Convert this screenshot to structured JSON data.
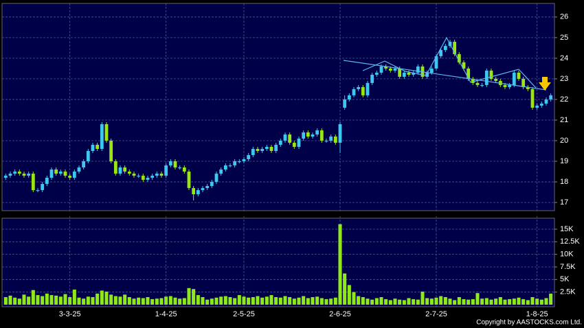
{
  "chart_data": [
    {
      "type": "candlestick",
      "open": [
        18.2,
        18.3,
        18.4,
        18.5,
        18.4,
        18.3,
        18.4,
        17.6,
        17.6,
        17.9,
        18.2,
        18.6,
        18.4,
        18.5,
        18.3,
        18.2,
        18.5,
        18.7,
        19.0,
        19.5,
        19.8,
        19.6,
        20.8,
        20.0,
        19.0,
        18.4,
        18.7,
        18.5,
        18.4,
        18.3,
        18.3,
        18.1,
        18.2,
        18.3,
        18.4,
        18.3,
        18.8,
        19.0,
        18.7,
        18.7,
        18.5,
        17.7,
        17.4,
        17.6,
        17.7,
        17.8,
        18.0,
        18.4,
        18.6,
        18.8,
        18.8,
        19.0,
        19.0,
        19.1,
        19.3,
        19.6,
        19.5,
        19.6,
        19.7,
        19.5,
        19.8,
        20.0,
        20.3,
        19.9,
        19.7,
        20.1,
        20.4,
        20.2,
        20.3,
        20.5,
        20.0,
        20.0,
        20.2,
        19.9,
        21.6,
        22.0,
        22.2,
        22.5,
        22.6,
        22.2,
        22.8,
        23.2,
        23.3,
        23.6,
        23.5,
        23.4,
        23.5,
        23.1,
        23.3,
        23.2,
        23.3,
        23.6,
        23.1,
        23.3,
        23.5,
        24.1,
        24.4,
        24.6,
        24.8,
        24.2,
        23.8,
        23.5,
        23.0,
        22.8,
        22.7,
        22.7,
        23.4,
        23.0,
        22.9,
        22.7,
        22.6,
        22.7,
        23.3,
        23.0,
        22.6,
        22.5,
        21.6,
        21.7,
        21.8,
        22.0
      ],
      "high": [
        18.4,
        18.5,
        18.6,
        18.6,
        18.5,
        18.5,
        18.5,
        17.7,
        18.0,
        18.3,
        18.7,
        18.7,
        18.6,
        18.6,
        18.4,
        18.6,
        18.8,
        19.1,
        19.6,
        19.9,
        19.9,
        20.9,
        20.9,
        20.1,
        19.1,
        18.8,
        18.8,
        18.6,
        18.5,
        18.4,
        18.4,
        18.3,
        18.4,
        18.5,
        18.5,
        18.9,
        19.1,
        19.1,
        18.8,
        18.8,
        18.6,
        17.8,
        17.7,
        17.8,
        17.9,
        18.1,
        18.5,
        18.7,
        18.9,
        18.9,
        19.1,
        19.1,
        19.2,
        19.4,
        19.7,
        19.7,
        19.7,
        19.8,
        19.8,
        19.9,
        20.1,
        20.4,
        20.4,
        20.0,
        20.2,
        20.5,
        20.5,
        20.4,
        20.6,
        20.6,
        20.1,
        20.3,
        20.3,
        20.9,
        22.2,
        22.3,
        22.6,
        22.7,
        22.7,
        22.9,
        23.3,
        23.4,
        23.7,
        23.7,
        23.6,
        23.6,
        23.6,
        23.4,
        23.4,
        23.4,
        23.7,
        23.7,
        23.4,
        23.6,
        24.2,
        24.5,
        24.7,
        24.9,
        24.9,
        24.3,
        23.9,
        23.6,
        23.1,
        22.9,
        22.8,
        23.5,
        23.5,
        23.1,
        23.0,
        22.8,
        22.8,
        23.4,
        23.4,
        23.1,
        22.7,
        22.6,
        21.8,
        21.9,
        22.1,
        22.3
      ],
      "low": [
        18.1,
        18.2,
        18.3,
        18.3,
        18.2,
        18.2,
        17.5,
        17.5,
        17.5,
        17.8,
        18.1,
        18.3,
        18.3,
        18.2,
        18.1,
        18.1,
        18.4,
        18.6,
        18.9,
        19.4,
        19.5,
        19.5,
        19.9,
        18.9,
        18.3,
        18.3,
        18.4,
        18.3,
        18.2,
        18.2,
        18.0,
        18.0,
        18.1,
        18.2,
        18.2,
        18.2,
        18.7,
        18.6,
        18.6,
        18.4,
        17.6,
        17.1,
        17.3,
        17.5,
        17.6,
        17.7,
        17.9,
        18.3,
        18.5,
        18.7,
        18.7,
        18.9,
        18.9,
        19.0,
        19.2,
        19.4,
        19.4,
        19.5,
        19.4,
        19.4,
        19.7,
        19.9,
        19.8,
        19.6,
        19.6,
        20.0,
        20.1,
        20.1,
        20.2,
        19.9,
        19.9,
        19.9,
        19.8,
        19.4,
        21.5,
        21.9,
        22.1,
        22.4,
        22.1,
        22.1,
        22.7,
        23.1,
        23.2,
        23.4,
        23.3,
        23.3,
        23.0,
        23.0,
        23.1,
        23.1,
        23.2,
        23.0,
        23.0,
        23.2,
        23.4,
        24.0,
        24.3,
        24.5,
        24.1,
        23.7,
        23.4,
        22.9,
        22.7,
        22.6,
        22.6,
        22.6,
        22.9,
        22.8,
        22.6,
        22.5,
        22.5,
        22.6,
        22.9,
        22.5,
        22.4,
        21.5,
        21.5,
        21.6,
        21.7,
        21.9
      ],
      "close": [
        18.3,
        18.4,
        18.5,
        18.4,
        18.3,
        18.4,
        17.6,
        17.6,
        17.9,
        18.2,
        18.6,
        18.4,
        18.5,
        18.3,
        18.2,
        18.5,
        18.7,
        19.0,
        19.5,
        19.8,
        19.6,
        20.8,
        20.0,
        19.0,
        18.4,
        18.7,
        18.5,
        18.4,
        18.3,
        18.3,
        18.1,
        18.2,
        18.3,
        18.4,
        18.3,
        18.8,
        19.0,
        18.7,
        18.7,
        18.5,
        17.7,
        17.4,
        17.6,
        17.7,
        17.8,
        18.0,
        18.4,
        18.6,
        18.8,
        18.8,
        19.0,
        19.0,
        19.1,
        19.3,
        19.6,
        19.5,
        19.6,
        19.7,
        19.5,
        19.8,
        20.0,
        20.3,
        19.9,
        19.7,
        20.1,
        20.4,
        20.2,
        20.3,
        20.5,
        20.0,
        20.0,
        20.2,
        19.9,
        20.8,
        22.0,
        22.2,
        22.5,
        22.6,
        22.2,
        22.8,
        23.2,
        23.3,
        23.6,
        23.5,
        23.4,
        23.5,
        23.1,
        23.3,
        23.2,
        23.3,
        23.6,
        23.1,
        23.3,
        23.5,
        24.1,
        24.4,
        24.6,
        24.8,
        24.2,
        23.8,
        23.5,
        23.0,
        22.8,
        22.7,
        22.7,
        23.4,
        23.0,
        22.9,
        22.7,
        22.6,
        22.7,
        23.3,
        23.0,
        22.6,
        22.5,
        21.6,
        21.7,
        21.8,
        22.0,
        22.2
      ],
      "up_color": "#3cc8f0",
      "down_color": "#9ae612",
      "ylim": [
        16.67,
        26.56
      ],
      "yticks": [
        17,
        18,
        19,
        20,
        21,
        22,
        23,
        24,
        25,
        26
      ],
      "grid": true
    },
    {
      "type": "bar",
      "categories": [
        null,
        null,
        null,
        null,
        null,
        null,
        null,
        null,
        null,
        null,
        null,
        null,
        null,
        null,
        "3-3-25",
        null,
        null,
        null,
        null,
        null,
        null,
        null,
        null,
        null,
        null,
        null,
        null,
        null,
        null,
        null,
        null,
        null,
        null,
        null,
        null,
        "1-4-25",
        null,
        null,
        null,
        null,
        null,
        null,
        null,
        null,
        null,
        null,
        null,
        null,
        null,
        null,
        null,
        null,
        "2-5-25",
        null,
        null,
        null,
        null,
        null,
        null,
        null,
        null,
        null,
        null,
        null,
        null,
        null,
        null,
        null,
        null,
        null,
        null,
        null,
        null,
        "2-6-25",
        null,
        null,
        null,
        null,
        null,
        null,
        null,
        null,
        null,
        null,
        null,
        null,
        null,
        null,
        null,
        null,
        null,
        null,
        null,
        null,
        "2-7-25",
        null,
        null,
        null,
        null,
        null,
        null,
        null,
        null,
        null,
        null,
        null,
        null,
        null,
        null,
        null,
        null,
        null,
        null,
        null,
        null,
        null,
        "1-8-25",
        null,
        null,
        null
      ],
      "values": [
        1500,
        1800,
        1400,
        1200,
        2000,
        1600,
        2900,
        1900,
        1700,
        2200,
        1900,
        1800,
        1600,
        2100,
        1500,
        3000,
        1400,
        1200,
        1600,
        1500,
        2200,
        2800,
        2600,
        2000,
        1700,
        1600,
        2000,
        1500,
        1200,
        1400,
        1300,
        1500,
        1100,
        1200,
        1300,
        1600,
        1700,
        1400,
        1200,
        1300,
        3300,
        3100,
        1900,
        1500,
        1000,
        1200,
        1400,
        1600,
        1700,
        1500,
        1300,
        1900,
        1600,
        1400,
        1500,
        1700,
        1400,
        1600,
        1900,
        1500,
        1400,
        1700,
        1500,
        1200,
        1400,
        1700,
        1300,
        1500,
        1600,
        1300,
        1100,
        1200,
        1400,
        16000,
        6200,
        3900,
        2500,
        1700,
        1500,
        1200,
        1000,
        1300,
        1500,
        1100,
        900,
        1200,
        1000,
        900,
        1300,
        1100,
        1000,
        2600,
        1300,
        1200,
        1400,
        1700,
        1500,
        1200,
        900,
        1500,
        1100,
        1000,
        1100,
        2300,
        1200,
        1300,
        1000,
        1200,
        1500,
        1000,
        1100,
        1200,
        1400,
        1100,
        900,
        1500,
        1200,
        1000,
        1300,
        2200
      ],
      "color": "#8ee81a",
      "ylim": [
        0,
        17180
      ],
      "yticks": [
        {
          "value": 2500,
          "label": "2.5K"
        },
        {
          "value": 5000,
          "label": "5K"
        },
        {
          "value": 7500,
          "label": "7.5K"
        },
        {
          "value": 10000,
          "label": "10K"
        },
        {
          "value": 12500,
          "label": "12.5K"
        },
        {
          "value": 15000,
          "label": "15K"
        }
      ],
      "grid": true
    }
  ],
  "footer": "Copyright by AASTOCKS.com Ltd."
}
